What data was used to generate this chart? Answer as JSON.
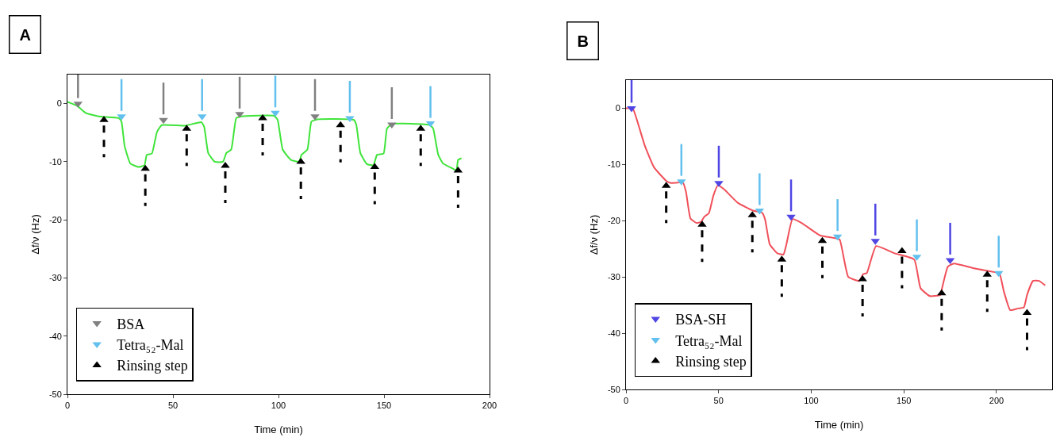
{
  "chart_data": [
    {
      "type": "line",
      "annotations": [
        "A"
      ],
      "xlabel": "Time (min)",
      "ylabel": "Δf/ν (Hz)",
      "xlim": [
        0,
        200
      ],
      "xticks": [
        0,
        50,
        100,
        150,
        200
      ],
      "ylim": [
        -50,
        5
      ],
      "yticks": [
        0,
        -10,
        -20,
        -30,
        -40,
        -50
      ],
      "grid": false,
      "legend": "bottom left",
      "series": [
        {
          "color": "#3fe43a",
          "line_style": "solid",
          "x": [
            0,
            4.7,
            8.6,
            14.9,
            24.3,
            25.6,
            27.1,
            29.8,
            33.7,
            36.5,
            37.6,
            40,
            42.4,
            44.7,
            55.7,
            63.5,
            64.8,
            66.7,
            69.8,
            73.7,
            75.3,
            77.6,
            80,
            82.4,
            98,
            99.6,
            102,
            105.9,
            109.8,
            110.9,
            113.7,
            115.6,
            118.4,
            135.7,
            136.9,
            138.8,
            141.9,
            145,
            146.7,
            149.8,
            151.4,
            153.7,
            171.8,
            173.3,
            175.7,
            178,
            182.7,
            184.3,
            185.1,
            186.7
          ],
          "values": [
            0.3,
            -0.4,
            -1.6,
            -2.2,
            -2.5,
            -3.1,
            -7.3,
            -10.3,
            -10.9,
            -10.6,
            -8.8,
            -8.6,
            -4.9,
            -3.7,
            -3.8,
            -3.2,
            -4,
            -8.5,
            -10,
            -10,
            -8.5,
            -7.9,
            -2.5,
            -2.2,
            -2.1,
            -2.8,
            -7.9,
            -9.7,
            -10,
            -8.8,
            -7.9,
            -3.1,
            -2.7,
            -2.8,
            -3.7,
            -8.5,
            -10.4,
            -10.6,
            -8.8,
            -8.6,
            -4.3,
            -3.5,
            -3.7,
            -4.3,
            -8.8,
            -10.3,
            -11.2,
            -11.5,
            -9.7,
            -9.4
          ]
        },
        {
          "type": "scatter",
          "name": "BSA",
          "color": "#808080",
          "marker": "triangle",
          "line_style": "solid",
          "x": [
            5,
            45.5,
            81.6,
            117.3,
            153.7
          ],
          "values": [
            0,
            -2.8,
            -1.8,
            -2.2,
            -3.6
          ]
        },
        {
          "type": "scatter",
          "name": "Tetra₅₂-Mal",
          "color": "#62c0ee",
          "marker": "triangle",
          "line_style": "solid",
          "x": [
            25.6,
            63.8,
            98.5,
            133.8,
            172
          ],
          "values": [
            -2.2,
            -2.2,
            -1.6,
            -2.5,
            -3.4
          ]
        },
        {
          "type": "scatter",
          "name": "Rinsing step",
          "color": "#000000",
          "marker": "triangle",
          "line_style": "dashed",
          "x": [
            17.3,
            36.9,
            56.5,
            74.8,
            92.5,
            110.6,
            129.4,
            145.6,
            167.4,
            185.1
          ],
          "values": [
            -2.8,
            -11.2,
            -4.3,
            -10.7,
            -2.5,
            -10,
            -3.7,
            -10.9,
            -4.3,
            -11.5
          ]
        }
      ]
    },
    {
      "type": "line",
      "annotations": [
        "B"
      ],
      "xlabel": "Time (min)",
      "ylabel": "Δf/ν (Hz)",
      "xlim": [
        0,
        230
      ],
      "xticks": [
        0,
        50,
        100,
        150,
        200
      ],
      "ylim": [
        -50,
        5
      ],
      "yticks": [
        0,
        -10,
        -20,
        -30,
        -40,
        -50
      ],
      "grid": false,
      "legend": "bottom left",
      "series": [
        {
          "color": "#f0505a",
          "line_style": "solid",
          "x": [
            0,
            3.6,
            6.1,
            10.2,
            15.1,
            21.7,
            24.2,
            30.7,
            32.4,
            34.8,
            38.1,
            40.6,
            42.2,
            44.7,
            47.2,
            49.6,
            52.9,
            60.3,
            68.5,
            73.5,
            75.1,
            77.6,
            81.7,
            85,
            86.6,
            89.9,
            94.8,
            104.7,
            112.9,
            115.4,
            120,
            126,
            128,
            130,
            135,
            145,
            155.6,
            159,
            164,
            169.6,
            170.4,
            173.7,
            177,
            188.5,
            200,
            201.6,
            204,
            207.4,
            211.5,
            214.8,
            216.5,
            219.7,
            223,
            226.3
          ],
          "values": [
            0,
            0,
            -2.3,
            -6.7,
            -10.5,
            -12.9,
            -13.3,
            -13.2,
            -14.9,
            -19.6,
            -20.4,
            -20.2,
            -19.3,
            -18.7,
            -15.5,
            -13.7,
            -14.4,
            -16.8,
            -18.2,
            -18.6,
            -19.8,
            -24.2,
            -25.8,
            -26,
            -24.2,
            -19.7,
            -20.4,
            -22.6,
            -23.1,
            -23.4,
            -30,
            -30.7,
            -29.5,
            -29.3,
            -24.5,
            -25.8,
            -26.9,
            -32,
            -33.4,
            -33.2,
            -32.3,
            -28.2,
            -27.6,
            -28.5,
            -29.2,
            -29.3,
            -32.6,
            -35.9,
            -35.6,
            -35.4,
            -33.2,
            -30.7,
            -30.7,
            -31.5
          ]
        },
        {
          "type": "scatter",
          "name": "BSA-SH",
          "color": "#4f46e4",
          "marker": "triangle",
          "line_style": "solid",
          "x": [
            3,
            50.1,
            89.1,
            134.6,
            175
          ],
          "values": [
            0,
            -13.3,
            -19.3,
            -23.6,
            -27
          ]
        },
        {
          "type": "scatter",
          "name": "Tetra₅₂-Mal",
          "color": "#62c0ee",
          "marker": "triangle",
          "line_style": "solid",
          "x": [
            29.9,
            72.1,
            114.2,
            157,
            201.2
          ],
          "values": [
            -13,
            -18.2,
            -22.8,
            -26.4,
            -29.3
          ]
        },
        {
          "type": "scatter",
          "name": "Rinsing step",
          "color": "#000000",
          "marker": "triangle",
          "line_style": "dashed",
          "x": [
            21.7,
            41.1,
            68.2,
            84.1,
            106,
            127.7,
            149,
            170.4,
            195,
            216.5
          ],
          "values": [
            -13.8,
            -20.7,
            -19,
            -26.9,
            -23.6,
            -30.4,
            -25.4,
            -32.9,
            -29.6,
            -36.4
          ]
        }
      ]
    }
  ]
}
